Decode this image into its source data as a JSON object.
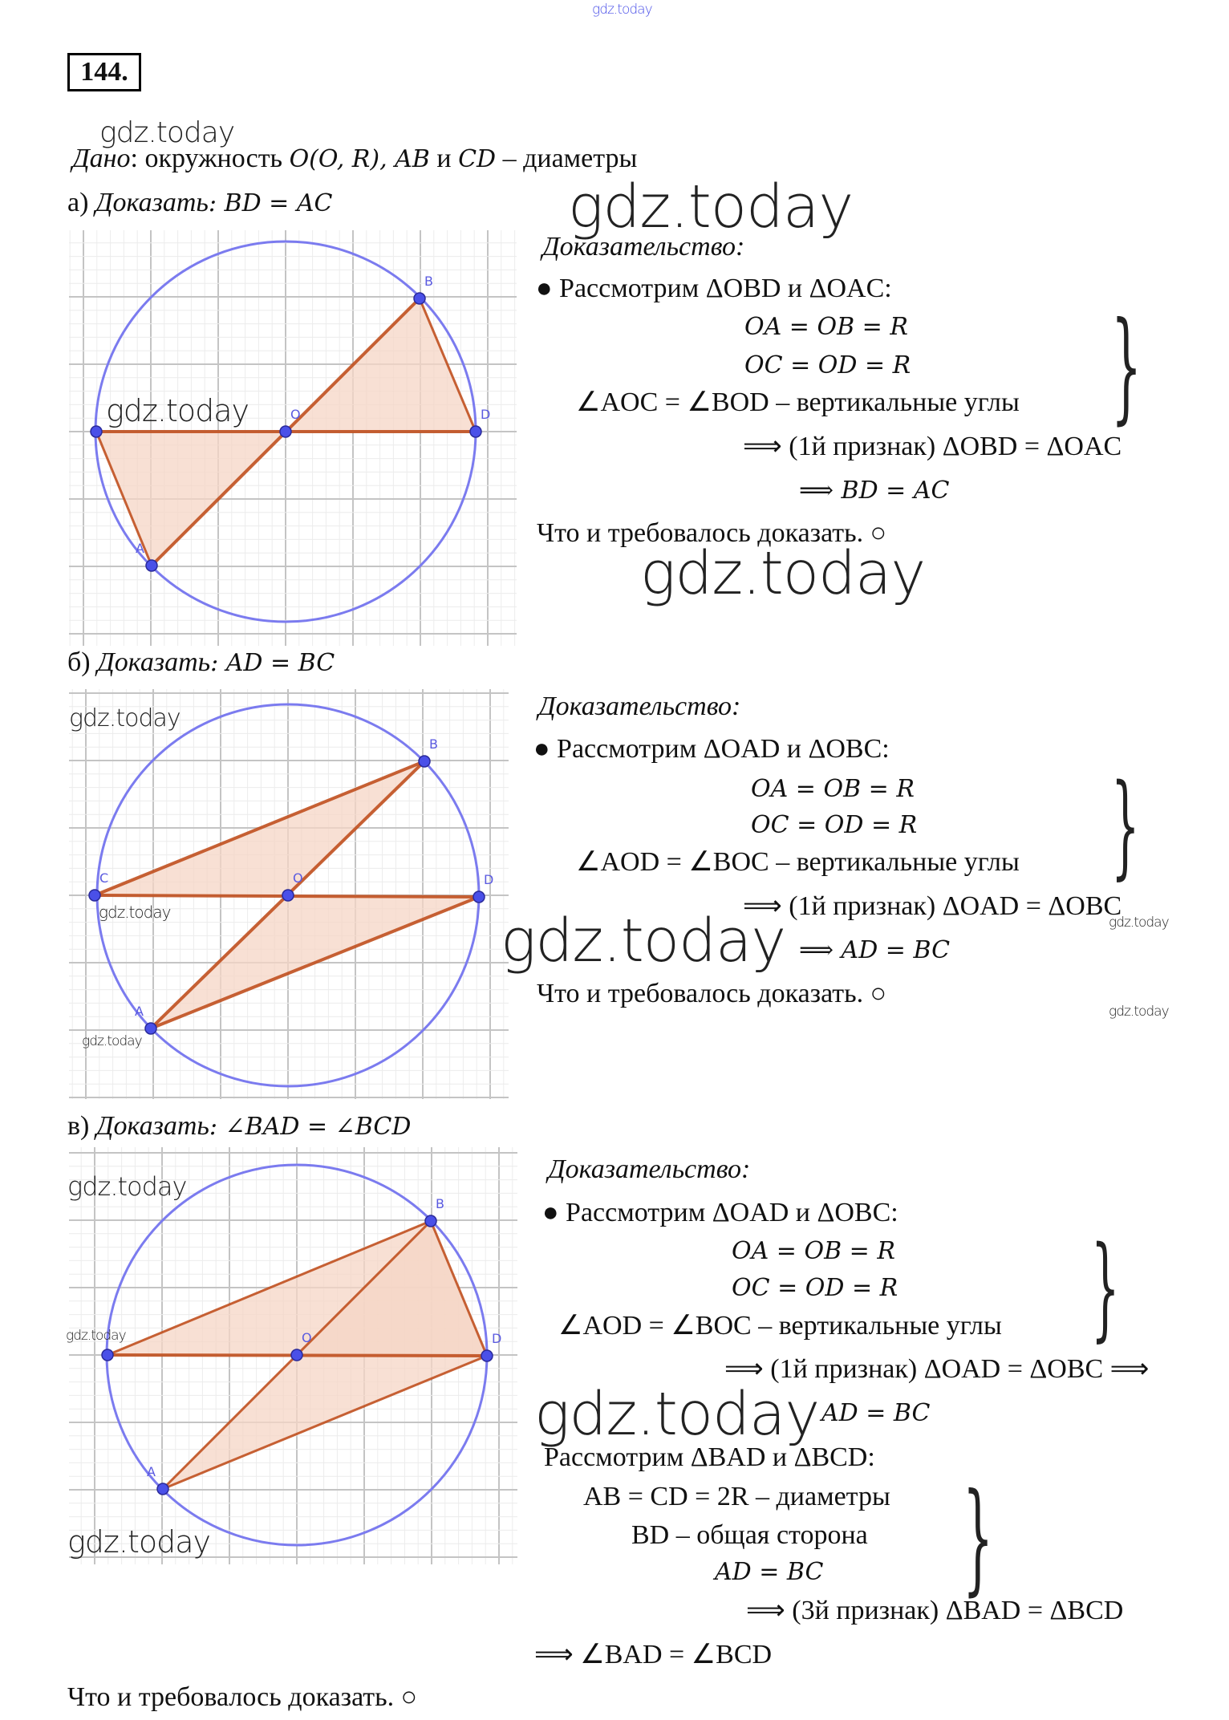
{
  "header": {
    "watermark_small": "gdz.today",
    "number": "144."
  },
  "watermark": "gdz.today",
  "given": {
    "label": "Дано",
    "text": ": окружность ",
    "math": "O(O, R), AB",
    "and": " и ",
    "math2": "CD",
    "rest": " – диаметры"
  },
  "a": {
    "task_prefix": "а) ",
    "task_label": "Доказать",
    "task_math": ": BD = AC",
    "proof_label": "Доказательство:",
    "consider": "● Рассмотрим ΔOBD и ΔOAC:",
    "lines": [
      "OA = OB = R",
      "OC = OD = R",
      "∠AOC = ∠BOD – вертикальные углы"
    ],
    "implies1": "⟹ (1й признак) ΔOBD = ΔOAC",
    "implies2": "⟹ BD = AC",
    "qed": "Что и требовалось доказать. ○",
    "points": {
      "A": "A",
      "B": "B",
      "C": "",
      "D": "D",
      "O": "O"
    }
  },
  "b": {
    "task_prefix": "б) ",
    "task_label": "Доказать",
    "task_math": ": AD = BC",
    "proof_label": "Доказательство:",
    "consider": "● Рассмотрим ΔOAD и ΔOBC:",
    "lines": [
      "OA = OB = R",
      "OC = OD = R",
      "∠AOD = ∠BOC – вертикальные углы"
    ],
    "implies1": "⟹ (1й признак) ΔOAD = ΔOBC",
    "implies2": "⟹ AD = BC",
    "qed": "Что и требовалось доказать. ○",
    "points": {
      "A": "A",
      "B": "B",
      "C": "C",
      "D": "D",
      "O": "O"
    }
  },
  "c": {
    "task_prefix": "в) ",
    "task_label": "Доказать",
    "task_math": ": ∠BAD = ∠BCD",
    "proof_label": "Доказательство:",
    "consider": "● Рассмотрим ΔOAD и ΔOBC:",
    "lines": [
      "OA = OB = R",
      "OC = OD = R",
      "∠AOD = ∠BOC – вертикальные углы"
    ],
    "implies1": "⟹ (1й признак) ΔOAD = ΔOBC ⟹",
    "implies2": "AD = BC",
    "consider2": "Рассмотрим ΔBAD и ΔBCD:",
    "lines2": [
      "AB = CD = 2R – диаметры",
      "BD – общая сторона",
      "AD = BC"
    ],
    "implies3": "⟹ (3й признак) ΔBAD = ΔBCD",
    "implies4": "⟹ ∠BAD = ∠BCD",
    "qed": "Что и требовалось доказать. ○",
    "points": {
      "A": "A",
      "B": "B",
      "C": "",
      "D": "D",
      "O": "O"
    }
  },
  "colors": {
    "circle": "#7b7bef",
    "segment": "#c0501f",
    "fill": "#f6d5c6",
    "point": "#4a50e8",
    "label": "#5a5ae0"
  }
}
